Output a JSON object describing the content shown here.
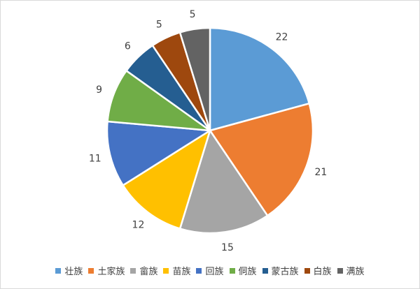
{
  "chart_data": {
    "type": "pie",
    "title": "",
    "categories": [
      "壮族",
      "土家族",
      "畲族",
      "苗族",
      "回族",
      "侗族",
      "蒙古族",
      "白族",
      "满族"
    ],
    "values": [
      22,
      21,
      15,
      12,
      11,
      9,
      6,
      5,
      5
    ],
    "colors": [
      "#5b9bd5",
      "#ed7d31",
      "#a5a5a5",
      "#ffc000",
      "#4472c4",
      "#70ad47",
      "#255e91",
      "#9e480e",
      "#636363"
    ],
    "legend_position": "bottom",
    "data_labels": "outside"
  }
}
